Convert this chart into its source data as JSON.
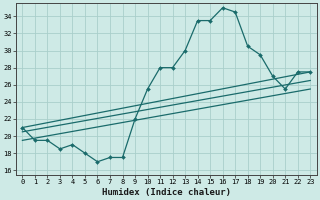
{
  "xlabel": "Humidex (Indice chaleur)",
  "bg_color": "#ceeae6",
  "line_color": "#1a6b6b",
  "grid_color": "#aacfcb",
  "xlim": [
    -0.5,
    23.5
  ],
  "ylim": [
    15.5,
    35.5
  ],
  "yticks": [
    16,
    18,
    20,
    22,
    24,
    26,
    28,
    30,
    32,
    34
  ],
  "xticks": [
    0,
    1,
    2,
    3,
    4,
    5,
    6,
    7,
    8,
    9,
    10,
    11,
    12,
    13,
    14,
    15,
    16,
    17,
    18,
    19,
    20,
    21,
    22,
    23
  ],
  "main_x": [
    0,
    1,
    2,
    3,
    4,
    5,
    6,
    7,
    8,
    9,
    10,
    11,
    12,
    13,
    14,
    15,
    16,
    17,
    18,
    19,
    20,
    21,
    22,
    23
  ],
  "main_y": [
    21.0,
    19.5,
    19.5,
    18.5,
    19.0,
    18.0,
    17.0,
    17.5,
    17.5,
    22.0,
    25.5,
    28.0,
    28.0,
    30.0,
    33.5,
    33.5,
    35.0,
    34.5,
    30.5,
    29.5,
    27.0,
    25.5,
    27.5,
    27.5
  ],
  "line2_x": [
    0,
    23
  ],
  "line2_y": [
    21.0,
    27.5
  ],
  "line3_x": [
    0,
    23
  ],
  "line3_y": [
    20.5,
    26.5
  ],
  "line4_x": [
    0,
    23
  ],
  "line4_y": [
    19.5,
    25.5
  ]
}
